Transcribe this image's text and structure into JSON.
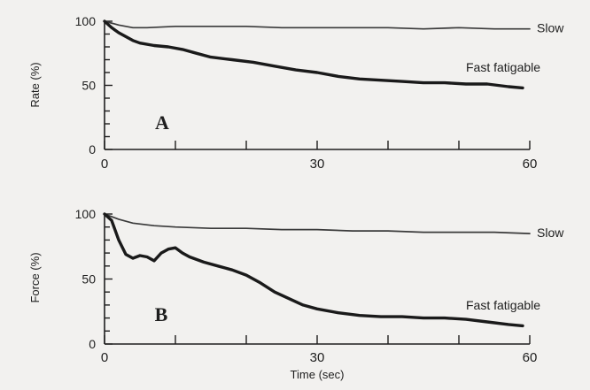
{
  "colors": {
    "background": "#f2f1ef",
    "ink": "#1e1e1e",
    "slow_line": "#3a3a3a",
    "fast_line": "#1a1a1a"
  },
  "chart_data": [
    {
      "type": "line",
      "panel_label": "A",
      "ylabel": "Rate (%)",
      "xlabel": "",
      "xlim": [
        0,
        60
      ],
      "ylim": [
        0,
        100
      ],
      "x_ticks": [
        0,
        30,
        60
      ],
      "y_ticks": [
        0,
        50,
        100
      ],
      "grid": false,
      "series": [
        {
          "name": "Slow",
          "x": [
            0,
            2,
            4,
            6,
            10,
            15,
            20,
            25,
            30,
            35,
            40,
            45,
            50,
            55,
            60
          ],
          "y": [
            100,
            97,
            95,
            95,
            96,
            96,
            96,
            95,
            95,
            95,
            95,
            94,
            95,
            94,
            94
          ]
        },
        {
          "name": "Fast fatigable",
          "x": [
            0,
            1,
            2,
            3,
            4,
            5,
            7,
            9,
            11,
            13,
            15,
            18,
            21,
            24,
            27,
            30,
            33,
            36,
            39,
            42,
            45,
            48,
            51,
            54,
            57,
            59
          ],
          "y": [
            100,
            95,
            91,
            88,
            85,
            83,
            81,
            80,
            78,
            75,
            72,
            70,
            68,
            65,
            62,
            60,
            57,
            55,
            54,
            53,
            52,
            52,
            51,
            51,
            49,
            48
          ]
        }
      ]
    },
    {
      "type": "line",
      "panel_label": "B",
      "ylabel": "Force (%)",
      "xlabel": "Time (sec)",
      "xlim": [
        0,
        60
      ],
      "ylim": [
        0,
        100
      ],
      "x_ticks": [
        0,
        30,
        60
      ],
      "y_ticks": [
        0,
        50,
        100
      ],
      "grid": false,
      "series": [
        {
          "name": "Slow",
          "x": [
            0,
            2,
            4,
            7,
            10,
            15,
            20,
            25,
            30,
            35,
            40,
            45,
            50,
            55,
            60
          ],
          "y": [
            100,
            96,
            93,
            91,
            90,
            89,
            89,
            88,
            88,
            87,
            87,
            86,
            86,
            86,
            85
          ]
        },
        {
          "name": "Fast fatigable",
          "x": [
            0,
            1,
            2,
            3,
            4,
            5,
            6,
            7,
            8,
            9,
            10,
            11,
            12,
            14,
            16,
            18,
            20,
            22,
            24,
            26,
            28,
            30,
            33,
            36,
            39,
            42,
            45,
            48,
            51,
            54,
            57,
            59
          ],
          "y": [
            100,
            95,
            80,
            69,
            66,
            68,
            67,
            64,
            70,
            73,
            74,
            70,
            67,
            63,
            60,
            57,
            53,
            47,
            40,
            35,
            30,
            27,
            24,
            22,
            21,
            21,
            20,
            20,
            19,
            17,
            15,
            14
          ]
        }
      ]
    }
  ]
}
